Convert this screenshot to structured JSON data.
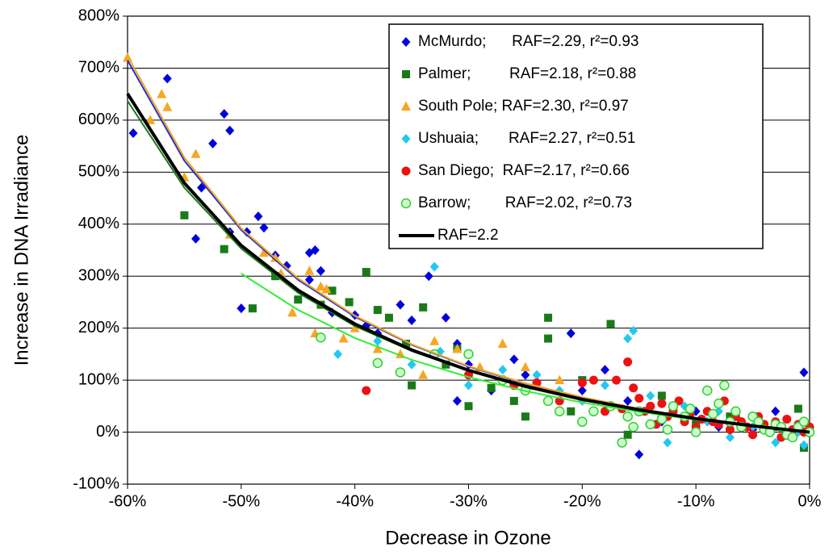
{
  "chart_data": {
    "type": "scatter",
    "xlabel": "Decrease in Ozone",
    "ylabel": "Increase in DNA Irradiance",
    "xlim": [
      -60,
      0
    ],
    "ylim": [
      -100,
      800
    ],
    "xticks": [
      {
        "value": -60,
        "label": "-60%"
      },
      {
        "value": -50,
        "label": "-50%"
      },
      {
        "value": -40,
        "label": "-40%"
      },
      {
        "value": -30,
        "label": "-30%"
      },
      {
        "value": -20,
        "label": "-20%"
      },
      {
        "value": -10,
        "label": "-10%"
      },
      {
        "value": 0,
        "label": "0%"
      }
    ],
    "yticks": [
      {
        "value": -100,
        "label": "-100%"
      },
      {
        "value": 0,
        "label": "0%"
      },
      {
        "value": 100,
        "label": "100%"
      },
      {
        "value": 200,
        "label": "200%"
      },
      {
        "value": 300,
        "label": "300%"
      },
      {
        "value": 400,
        "label": "400%"
      },
      {
        "value": 500,
        "label": "500%"
      },
      {
        "value": 600,
        "label": "600%"
      },
      {
        "value": 700,
        "label": "700%"
      },
      {
        "value": 800,
        "label": "800%"
      }
    ],
    "grid": true,
    "legend": "upper right",
    "series": [
      {
        "name": "McMurdo;      RAF=2.29, r²=0.93",
        "color": "#0000dd",
        "marker": "diamond",
        "x": [
          -59.5,
          -56.5,
          -52.5,
          -51.5,
          -51,
          -53.5,
          -54,
          -51,
          -49.5,
          -48.5,
          -48,
          -50,
          -47,
          -46,
          -44,
          -43.5,
          -43,
          -44,
          -42,
          -40,
          -39,
          -38,
          -36,
          -35,
          -33.5,
          -32,
          -31,
          -30,
          -31,
          -28,
          -26,
          -25,
          -21,
          -20,
          -18,
          -16,
          -15,
          -13,
          -10,
          -8,
          -5,
          -3,
          -1,
          -0.5
        ],
        "values": [
          575,
          680,
          555,
          612,
          580,
          470,
          372,
          385,
          385,
          415,
          393,
          238,
          340,
          320,
          345,
          350,
          310,
          293,
          230,
          225,
          205,
          190,
          245,
          215,
          300,
          220,
          170,
          130,
          60,
          80,
          140,
          110,
          190,
          80,
          120,
          60,
          -43,
          20,
          40,
          10,
          5,
          40,
          10,
          115
        ]
      },
      {
        "name": "Palmer;         RAF=2.18, r²=0.88",
        "color": "#1a7a1a",
        "marker": "square",
        "x": [
          -55,
          -51.5,
          -49,
          -47,
          -45,
          -43,
          -42,
          -40.5,
          -39,
          -38,
          -37,
          -35.5,
          -35,
          -34,
          -32,
          -31,
          -30,
          -28,
          -26,
          -25,
          -23,
          -23,
          -21,
          -20,
          -17.5,
          -16,
          -13,
          -10,
          -7,
          -3,
          -1,
          -0.5
        ],
        "values": [
          417,
          352,
          238,
          300,
          255,
          245,
          272,
          250,
          308,
          235,
          220,
          170,
          90,
          240,
          130,
          160,
          50,
          85,
          60,
          30,
          220,
          180,
          40,
          100,
          208,
          -5,
          70,
          20,
          30,
          10,
          45,
          -30
        ]
      },
      {
        "name": "South Pole; RAF=2.30, r²=0.97",
        "color": "#f5a623",
        "marker": "triangle",
        "x": [
          -60,
          -58,
          -57,
          -56.5,
          -55,
          -54,
          -51,
          -48,
          -47,
          -46.5,
          -45.5,
          -44,
          -43.5,
          -43,
          -42.5,
          -41,
          -40,
          -38,
          -36,
          -34,
          -33,
          -31,
          -29,
          -27,
          -25,
          -22
        ],
        "values": [
          720,
          600,
          650,
          625,
          490,
          535,
          380,
          345,
          335,
          305,
          230,
          310,
          190,
          280,
          275,
          180,
          200,
          160,
          150,
          110,
          175,
          160,
          125,
          170,
          125,
          100
        ]
      },
      {
        "name": "Ushuaia;       RAF=2.27, r²=0.51",
        "color": "#22c8f0",
        "marker": "diamond",
        "x": [
          -41.5,
          -38,
          -35,
          -33,
          -32.5,
          -30,
          -27,
          -24,
          -22,
          -20,
          -18,
          -16,
          -15.5,
          -14,
          -12.5,
          -11,
          -9,
          -7,
          -5,
          -3,
          -1,
          -0.5,
          -13,
          -8
        ],
        "values": [
          150,
          175,
          130,
          318,
          155,
          90,
          120,
          110,
          80,
          60,
          90,
          180,
          195,
          70,
          -20,
          50,
          20,
          -10,
          10,
          -20,
          0,
          -25,
          30,
          40
        ]
      },
      {
        "name": "San Diego;  RAF=2.17, r²=0.66",
        "color": "#ee1111",
        "marker": "circle",
        "x": [
          -39,
          -30,
          -26,
          -24,
          -22,
          -20,
          -19,
          -18,
          -17,
          -16,
          -15.5,
          -15,
          -14,
          -13,
          -12.5,
          -12,
          -11.5,
          -11,
          -10.5,
          -10,
          -9.5,
          -9,
          -8.5,
          -8,
          -7.5,
          -7,
          -6.5,
          -6,
          -5.5,
          -5,
          -4.5,
          -4,
          -3.5,
          -3,
          -2.5,
          -2,
          -1.5,
          -1,
          -0.5,
          0,
          -14.5,
          -13.5,
          -16.5
        ],
        "values": [
          80,
          110,
          90,
          95,
          60,
          95,
          100,
          40,
          100,
          135,
          85,
          65,
          50,
          55,
          30,
          40,
          60,
          20,
          35,
          10,
          25,
          40,
          20,
          15,
          60,
          5,
          30,
          20,
          10,
          -5,
          30,
          15,
          0,
          20,
          -10,
          25,
          5,
          15,
          0,
          10,
          40,
          15,
          45
        ]
      },
      {
        "name": "Barrow;        RAF=2.02, r²=0.73",
        "color": "#33cc33",
        "fill": "#ccffcc",
        "marker": "circle",
        "x": [
          -43,
          -38,
          -36,
          -33,
          -30,
          -27,
          -25,
          -23,
          -22,
          -20,
          -19,
          -17.5,
          -16.5,
          -16,
          -15,
          -14,
          -13,
          -12,
          -11,
          -10,
          -9,
          -8.5,
          -7.5,
          -7,
          -6,
          -5,
          -4,
          -3,
          -2,
          -1,
          -0.5,
          -15.5,
          -12.5,
          -10.5,
          -8,
          -6.5,
          -4.5,
          -3.5,
          -2.5,
          -1.5,
          0
        ],
        "values": [
          182,
          133,
          115,
          150,
          150,
          100,
          80,
          60,
          40,
          20,
          40,
          50,
          -20,
          30,
          40,
          15,
          25,
          50,
          30,
          0,
          80,
          35,
          90,
          20,
          10,
          30,
          5,
          15,
          -5,
          10,
          20,
          10,
          5,
          45,
          55,
          40,
          20,
          0,
          10,
          -10,
          0
        ]
      }
    ],
    "fits": [
      {
        "color": "#2233cc",
        "x": [
          -60,
          -55,
          -50,
          -45,
          -40,
          -35,
          -30,
          -25,
          -20,
          -15,
          -10,
          -5,
          0
        ],
        "values": [
          715,
          522,
          389,
          293,
          222,
          168,
          126,
          93,
          67,
          45,
          27,
          12,
          0
        ]
      },
      {
        "color": "#f5a623",
        "x": [
          -60,
          -55,
          -50,
          -45,
          -40,
          -35,
          -30,
          -25,
          -20,
          -15,
          -10,
          -5,
          0
        ],
        "values": [
          723,
          528,
          392,
          296,
          224,
          169,
          127,
          94,
          67,
          45,
          27,
          13,
          0
        ]
      },
      {
        "color": "#1a7a1a",
        "x": [
          -60,
          -55,
          -50,
          -45,
          -40,
          -35,
          -30,
          -25,
          -20,
          -15,
          -10,
          -5,
          0
        ],
        "values": [
          637,
          470,
          353,
          268,
          204,
          156,
          118,
          87,
          63,
          42,
          26,
          12,
          0
        ]
      },
      {
        "color": "#33ee33",
        "x": [
          -50,
          -45,
          -40,
          -35,
          -30,
          -25,
          -20,
          -15,
          -10,
          -5,
          0
        ],
        "values": [
          305,
          235,
          181,
          139,
          106,
          79,
          57,
          39,
          24,
          11,
          0
        ]
      },
      {
        "name": "RAF=2.2",
        "color": "#000000",
        "x": [
          -60,
          -55,
          -50,
          -45,
          -40,
          -35,
          -30,
          -25,
          -20,
          -15,
          -10,
          -5,
          0
        ],
        "values": [
          651,
          479,
          359,
          273,
          208,
          158,
          119,
          88,
          63,
          43,
          26,
          12,
          0
        ]
      }
    ]
  }
}
